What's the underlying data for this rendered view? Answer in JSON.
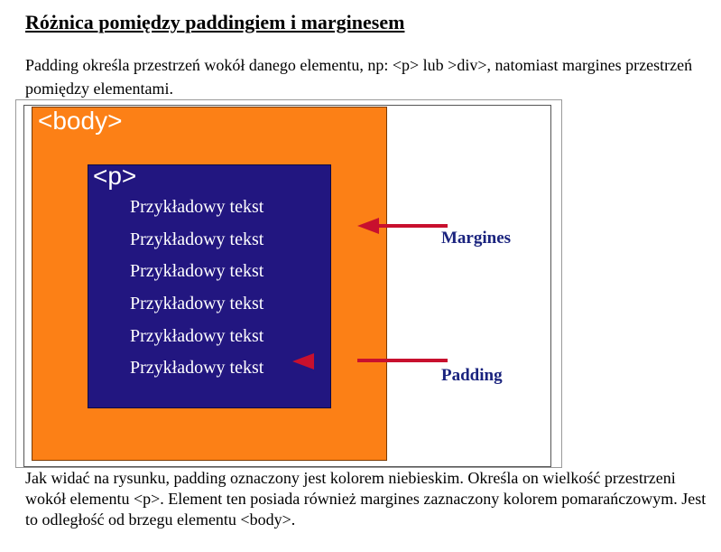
{
  "page": {
    "title": "Różnica pomiędzy paddingiem i marginesem",
    "intro": "Padding określa przestrzeń wokół danego elementu, np: <p> lub >div>, natomiast margines przestrzeń pomiędzy elementami.",
    "conclusion": "Jak widać na rysunku, padding oznaczony jest kolorem niebieskim. Określa on wielkość przestrzeni wokół elementu <p>. Element ten posiada również margines zaznaczony kolorem pomarańczowym. Jest to odległość od brzegu elementu <body>."
  },
  "figure": {
    "body_tag": "<body>",
    "p_tag": "<p>",
    "sample_lines": [
      "Przykładowy tekst",
      "Przykładowy tekst",
      "Przykładowy tekst",
      "Przykładowy tekst",
      "Przykładowy tekst",
      "Przykładowy tekst"
    ],
    "margin_label": "Margines",
    "padding_label": "Padding",
    "colors": {
      "body_fill": "#fc8016",
      "p_fill": "#221680",
      "arrow": "#c8102e",
      "label_text": "#1a237e"
    }
  }
}
